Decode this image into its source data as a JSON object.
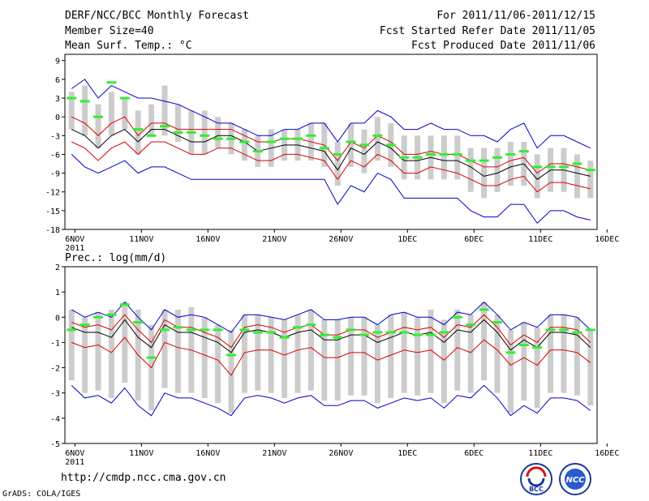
{
  "header": {
    "title": "DERF/NCC/BCC Monthly Forecast",
    "member_size": "Member Size=40",
    "variable1": "Mean Surf. Temp.: °C",
    "period": "For 2011/11/06-2011/12/15",
    "started": "Fcst Started Refer Date 2011/11/05",
    "produced": "Fcst Produced Date 2011/11/06"
  },
  "footer": {
    "url": "http://cmdp.ncc.cma.gov.cn",
    "grads": "GrADS: COLA/IGES",
    "logo1_text": "BCC",
    "logo2_text": "NCC"
  },
  "colors": {
    "mean": "#000000",
    "spread": "#dd0000",
    "extreme": "#0000cc",
    "box": "#cccccc",
    "obs": "#33ee33"
  },
  "chart_data": [
    {
      "type": "line",
      "title": "Mean Surf. Temp.: °C",
      "ylabel": "°C",
      "ylim": [
        -18,
        10
      ],
      "yticks": [
        9,
        6,
        3,
        0,
        -3,
        -6,
        -9,
        -12,
        -15,
        -18
      ],
      "xticks": [
        "6NOV",
        "11NOV",
        "16NOV",
        "21NOV",
        "26NOV",
        "1DEC",
        "6DEC",
        "11DEC",
        "16DEC"
      ],
      "xtick_year": "2011",
      "days": [
        1,
        2,
        3,
        4,
        5,
        6,
        7,
        8,
        9,
        10,
        11,
        12,
        13,
        14,
        15,
        16,
        17,
        18,
        19,
        20,
        21,
        22,
        23,
        24,
        25,
        26,
        27,
        28,
        29,
        30,
        31,
        32,
        33,
        34,
        35,
        36,
        37,
        38,
        39,
        40
      ],
      "series": [
        {
          "name": "ensemble mean",
          "values": [
            -2,
            -3,
            -5,
            -3,
            -2,
            -4,
            -2,
            -2,
            -3,
            -4,
            -4,
            -3,
            -3,
            -4,
            -5.5,
            -5,
            -4.5,
            -4.5,
            -5,
            -5.5,
            -8.5,
            -5,
            -6,
            -4,
            -5,
            -7,
            -7,
            -6.5,
            -7,
            -7,
            -8,
            -9.5,
            -9,
            -8,
            -7.5,
            -10,
            -8.5,
            -8.5,
            -9,
            -9.5
          ]
        },
        {
          "name": "mean + sd",
          "values": [
            0,
            -1,
            -3,
            -1,
            0,
            -3,
            -1,
            -1,
            -2,
            -2,
            -2,
            -2,
            -2,
            -3,
            -4,
            -4,
            -3.5,
            -3.5,
            -4,
            -4.5,
            -7,
            -4,
            -5,
            -3,
            -4,
            -6,
            -6,
            -5.5,
            -6,
            -6,
            -7,
            -8,
            -8,
            -7,
            -6.5,
            -9,
            -7.5,
            -7.5,
            -8,
            -8.5
          ]
        },
        {
          "name": "mean - sd",
          "values": [
            -4,
            -5,
            -7,
            -5,
            -4,
            -6,
            -4,
            -4,
            -5,
            -6,
            -6,
            -5,
            -5,
            -6,
            -7,
            -7,
            -6,
            -6,
            -6.5,
            -7,
            -10,
            -7,
            -8,
            -6,
            -7,
            -9,
            -9,
            -8,
            -8.5,
            -9,
            -10,
            -11,
            -11,
            -10,
            -9.5,
            -12,
            -10.5,
            -10.5,
            -11,
            -11.5
          ]
        },
        {
          "name": "ensemble max",
          "values": [
            4.5,
            6,
            3,
            5,
            4,
            3,
            3,
            2.5,
            2,
            1,
            0,
            -1,
            -1,
            -2,
            -3,
            -3,
            -2,
            -2,
            -1,
            -1,
            -4,
            -1,
            -1,
            1,
            0,
            -2,
            -2,
            -1,
            -2,
            -2,
            -3,
            -3,
            -4,
            -2,
            -1,
            -5,
            -3,
            -3,
            -4,
            -5
          ]
        },
        {
          "name": "ensemble min",
          "values": [
            -6,
            -8,
            -9,
            -8,
            -7,
            -9,
            -8,
            -8,
            -9,
            -10,
            -10,
            -10,
            -10,
            -10,
            -10,
            -10,
            -10,
            -10,
            -10,
            -10,
            -14,
            -11,
            -12,
            -9,
            -10,
            -13,
            -13,
            -13,
            -13,
            -13,
            -15,
            -16,
            -16,
            -14,
            -14,
            -17,
            -15,
            -15,
            -16,
            -16.5
          ]
        }
      ],
      "boxes": {
        "high": [
          4,
          5,
          2,
          4,
          3,
          1,
          2,
          5,
          2,
          1,
          1,
          0,
          -1,
          -2,
          -3,
          -2,
          -2,
          -2,
          -1,
          -1,
          -4,
          -1,
          -2,
          0,
          -1,
          -3,
          -3,
          -3,
          -3,
          -3,
          -5,
          -5,
          -5,
          -4,
          -4,
          -6,
          -5,
          -5,
          -6,
          -7
        ],
        "low": [
          -2,
          -3,
          -5,
          -3,
          -2,
          -6,
          -3,
          -3,
          -4,
          -6,
          -6,
          -5,
          -6,
          -7,
          -8,
          -8,
          -7,
          -7,
          -7,
          -8,
          -11,
          -8,
          -9,
          -7,
          -8,
          -10,
          -10,
          -10,
          -10,
          -10,
          -12,
          -13,
          -12,
          -11,
          -11,
          -13,
          -12,
          -12,
          -13,
          -13
        ]
      },
      "observed": [
        3,
        2.5,
        0,
        5.5,
        3,
        -2,
        -3,
        -1.5,
        -2.5,
        -2.5,
        -3,
        -3.5,
        -3.5,
        -4,
        -5.5,
        -4,
        -3.5,
        -3.5,
        -3,
        -5,
        -6,
        -4,
        -4.5,
        -3,
        -4.5,
        -6.5,
        -6.5,
        -6,
        -6,
        -6,
        -7,
        -7,
        -6.5,
        -6,
        -5.5,
        -8,
        -8,
        -8,
        -7.5,
        -8.5
      ]
    },
    {
      "type": "line",
      "title": "Prec.: log(mm/d)",
      "ylabel": "log(mm/d)",
      "ylim": [
        -5,
        2
      ],
      "yticks": [
        2,
        1,
        0,
        -1,
        -2,
        -3,
        -4,
        -5
      ],
      "xticks": [
        "6NOV",
        "11NOV",
        "16NOV",
        "21NOV",
        "26NOV",
        "1DEC",
        "6DEC",
        "11DEC",
        "16DEC"
      ],
      "xtick_year": "2011",
      "days": [
        1,
        2,
        3,
        4,
        5,
        6,
        7,
        8,
        9,
        10,
        11,
        12,
        13,
        14,
        15,
        16,
        17,
        18,
        19,
        20,
        21,
        22,
        23,
        24,
        25,
        26,
        27,
        28,
        29,
        30,
        31,
        32,
        33,
        34,
        35,
        36,
        37,
        38,
        39,
        40
      ],
      "series": [
        {
          "name": "ensemble mean",
          "values": [
            -0.4,
            -0.6,
            -0.6,
            -0.8,
            -0.1,
            -0.8,
            -1.2,
            -0.3,
            -0.6,
            -0.6,
            -0.8,
            -1.0,
            -1.4,
            -0.6,
            -0.5,
            -0.6,
            -0.8,
            -0.6,
            -0.5,
            -0.9,
            -0.9,
            -0.7,
            -0.7,
            -1.0,
            -0.8,
            -0.6,
            -0.7,
            -0.6,
            -1.0,
            -0.5,
            -0.6,
            -0.1,
            -0.6,
            -1.3,
            -0.9,
            -1.2,
            -0.6,
            -0.6,
            -0.7,
            -1.2
          ]
        },
        {
          "name": "mean + sd",
          "values": [
            -0.2,
            -0.4,
            -0.3,
            -0.5,
            0.1,
            -0.5,
            -1.0,
            -0.1,
            -0.4,
            -0.4,
            -0.6,
            -0.8,
            -1.2,
            -0.4,
            -0.3,
            -0.4,
            -0.6,
            -0.4,
            -0.3,
            -0.7,
            -0.7,
            -0.5,
            -0.5,
            -0.8,
            -0.6,
            -0.4,
            -0.5,
            -0.4,
            -0.8,
            -0.3,
            -0.4,
            0.1,
            -0.4,
            -1.1,
            -0.7,
            -1.0,
            -0.4,
            -0.4,
            -0.5,
            -1.0
          ]
        },
        {
          "name": "mean - sd",
          "values": [
            -1.0,
            -1.2,
            -1.1,
            -1.4,
            -0.8,
            -1.5,
            -2.0,
            -1.0,
            -1.2,
            -1.3,
            -1.5,
            -1.7,
            -2.3,
            -1.4,
            -1.3,
            -1.3,
            -1.5,
            -1.3,
            -1.2,
            -1.6,
            -1.6,
            -1.4,
            -1.4,
            -1.7,
            -1.5,
            -1.3,
            -1.4,
            -1.3,
            -1.7,
            -1.2,
            -1.4,
            -0.9,
            -1.3,
            -1.9,
            -1.6,
            -1.9,
            -1.3,
            -1.3,
            -1.4,
            -1.8
          ]
        },
        {
          "name": "ensemble max",
          "values": [
            0.3,
            0.0,
            0.2,
            0.0,
            0.6,
            0.0,
            -0.5,
            0.3,
            0.0,
            0.1,
            0.0,
            -0.3,
            -0.6,
            0.1,
            0.1,
            0.0,
            -0.1,
            0.1,
            0.3,
            -0.1,
            -0.1,
            0.0,
            0.0,
            -0.3,
            0.1,
            0.2,
            0.0,
            0.0,
            -0.3,
            0.2,
            0.1,
            0.6,
            0.1,
            -0.5,
            -0.2,
            -0.4,
            0.1,
            0.1,
            0.0,
            -0.5
          ]
        },
        {
          "name": "ensemble min",
          "values": [
            -2.7,
            -3.2,
            -3.1,
            -3.4,
            -2.8,
            -3.5,
            -3.9,
            -3.0,
            -3.2,
            -3.2,
            -3.4,
            -3.6,
            -3.9,
            -3.2,
            -3.1,
            -3.2,
            -3.4,
            -3.2,
            -3.1,
            -3.5,
            -3.5,
            -3.3,
            -3.3,
            -3.6,
            -3.4,
            -3.2,
            -3.3,
            -3.2,
            -3.6,
            -3.1,
            -3.2,
            -2.7,
            -3.2,
            -3.9,
            -3.5,
            -3.8,
            -3.2,
            -3.2,
            -3.3,
            -3.7
          ]
        }
      ],
      "boxes": {
        "high": [
          0.3,
          0.0,
          0.2,
          0.3,
          0.6,
          0.3,
          -0.3,
          0.3,
          0.3,
          0.4,
          0.0,
          -0.3,
          -0.5,
          0.1,
          0.1,
          0.0,
          -0.1,
          0.1,
          0.3,
          -0.1,
          -0.1,
          0.0,
          0.0,
          -0.3,
          0.1,
          0.2,
          0.0,
          0.3,
          -0.1,
          0.3,
          0.1,
          0.6,
          0.1,
          -0.5,
          -0.2,
          -0.4,
          0.1,
          0.1,
          0.0,
          -0.5
        ],
        "low": [
          -2.5,
          -3.0,
          -2.9,
          -3.2,
          -2.6,
          -3.3,
          -3.7,
          -2.8,
          -3.0,
          -3.0,
          -3.2,
          -3.4,
          -3.8,
          -3.0,
          -2.9,
          -3.0,
          -3.2,
          -3.0,
          -2.9,
          -3.3,
          -3.3,
          -3.1,
          -3.1,
          -3.4,
          -3.2,
          -3.0,
          -3.1,
          -3.0,
          -3.4,
          -2.9,
          -3.0,
          -2.5,
          -3.0,
          -3.8,
          -3.3,
          -3.6,
          -3.0,
          -3.0,
          -3.1,
          -3.5
        ]
      },
      "observed": [
        -0.5,
        -0.3,
        0.0,
        0.1,
        0.5,
        -0.2,
        -1.6,
        -0.5,
        -0.4,
        -0.5,
        -0.5,
        -0.5,
        -1.5,
        -0.5,
        -0.6,
        -0.6,
        -0.8,
        -0.4,
        -0.3,
        -0.7,
        -0.8,
        -0.5,
        -0.7,
        -0.6,
        -0.6,
        -0.6,
        -0.7,
        -0.7,
        -0.6,
        0.0,
        -0.3,
        0.3,
        -0.2,
        -1.4,
        -1.1,
        -1.2,
        -0.5,
        -0.5,
        -0.6,
        -0.5
      ]
    }
  ]
}
